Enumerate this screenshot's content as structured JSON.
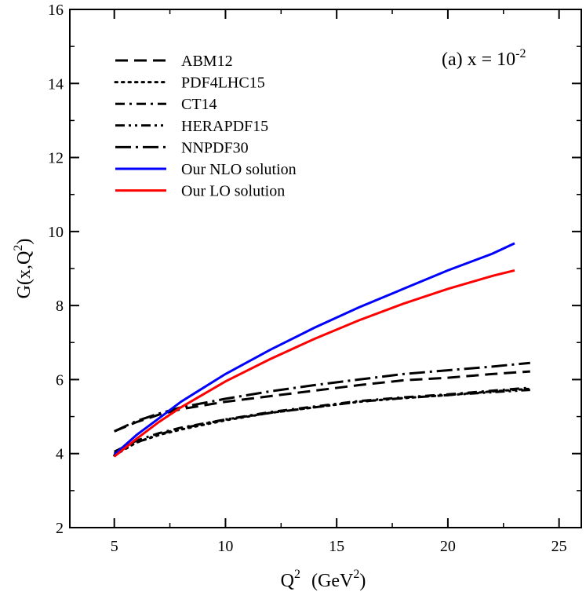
{
  "chart_data": {
    "type": "line",
    "title": "",
    "annotation": {
      "prefix": "(a) x = 10",
      "exponent": "-2"
    },
    "xlabel": {
      "base": "Q",
      "sup": "2",
      "unit_open": "(GeV",
      "unit_sup": "2",
      "unit_close": ")"
    },
    "ylabel": {
      "prefix": "G(x,Q",
      "sup": "2",
      "suffix": ")"
    },
    "xlim": [
      3,
      26
    ],
    "ylim": [
      2,
      16
    ],
    "xticks": [
      5,
      10,
      15,
      20,
      25
    ],
    "yticks": [
      2,
      4,
      6,
      8,
      10,
      12,
      14,
      16
    ],
    "xtick_labels": [
      "5",
      "10",
      "15",
      "20",
      "25"
    ],
    "ytick_labels": [
      "2",
      "4",
      "6",
      "8",
      "10",
      "12",
      "14",
      "16"
    ],
    "grid": false,
    "legend_position": "top-left",
    "series": [
      {
        "name": "ABM12",
        "color": "#000000",
        "style": "dashed",
        "x": [
          5,
          6,
          7,
          8,
          10,
          12,
          14,
          16,
          18,
          20,
          22,
          23.7
        ],
        "y": [
          4.6,
          4.85,
          5.05,
          5.2,
          5.4,
          5.55,
          5.7,
          5.85,
          5.98,
          6.05,
          6.15,
          6.22
        ]
      },
      {
        "name": "PDF4LHC15",
        "color": "#000000",
        "style": "dotted",
        "x": [
          5,
          6,
          7,
          8,
          10,
          12,
          14,
          16,
          18,
          20,
          22,
          23.7
        ],
        "y": [
          3.95,
          4.3,
          4.5,
          4.65,
          4.9,
          5.1,
          5.25,
          5.4,
          5.5,
          5.58,
          5.68,
          5.75
        ]
      },
      {
        "name": "CT14",
        "color": "#000000",
        "style": "dashdot",
        "x": [
          5,
          6,
          7,
          8,
          10,
          12,
          14,
          16,
          18,
          20,
          22,
          23.7
        ],
        "y": [
          4.05,
          4.35,
          4.55,
          4.7,
          4.92,
          5.12,
          5.27,
          5.42,
          5.52,
          5.6,
          5.7,
          5.78
        ]
      },
      {
        "name": "HERAPDF15",
        "color": "#000000",
        "style": "dashdotdot",
        "x": [
          5,
          6,
          7,
          8,
          10,
          12,
          14,
          16,
          18,
          20,
          22,
          23.7
        ],
        "y": [
          4.0,
          4.3,
          4.52,
          4.68,
          4.92,
          5.1,
          5.25,
          5.4,
          5.5,
          5.58,
          5.66,
          5.72
        ]
      },
      {
        "name": "NNPDF30",
        "color": "#000000",
        "style": "longdashdot",
        "x": [
          5,
          6,
          7,
          8,
          10,
          12,
          14,
          16,
          18,
          20,
          22,
          23.7
        ],
        "y": [
          4.6,
          4.88,
          5.08,
          5.25,
          5.48,
          5.68,
          5.85,
          6.0,
          6.15,
          6.25,
          6.35,
          6.45
        ]
      },
      {
        "name": "Our NLO solution",
        "color": "#0000ff",
        "style": "solid",
        "x": [
          5,
          6,
          7,
          8,
          10,
          12,
          14,
          16,
          18,
          20,
          22,
          23
        ],
        "y": [
          3.97,
          4.5,
          4.95,
          5.4,
          6.15,
          6.8,
          7.4,
          7.95,
          8.45,
          8.95,
          9.4,
          9.68
        ]
      },
      {
        "name": "Our LO solution",
        "color": "#ff0000",
        "style": "solid",
        "x": [
          5,
          6,
          7,
          8,
          10,
          12,
          14,
          16,
          18,
          20,
          22,
          23
        ],
        "y": [
          3.92,
          4.4,
          4.85,
          5.25,
          5.95,
          6.55,
          7.1,
          7.6,
          8.05,
          8.45,
          8.8,
          8.95
        ]
      }
    ]
  }
}
